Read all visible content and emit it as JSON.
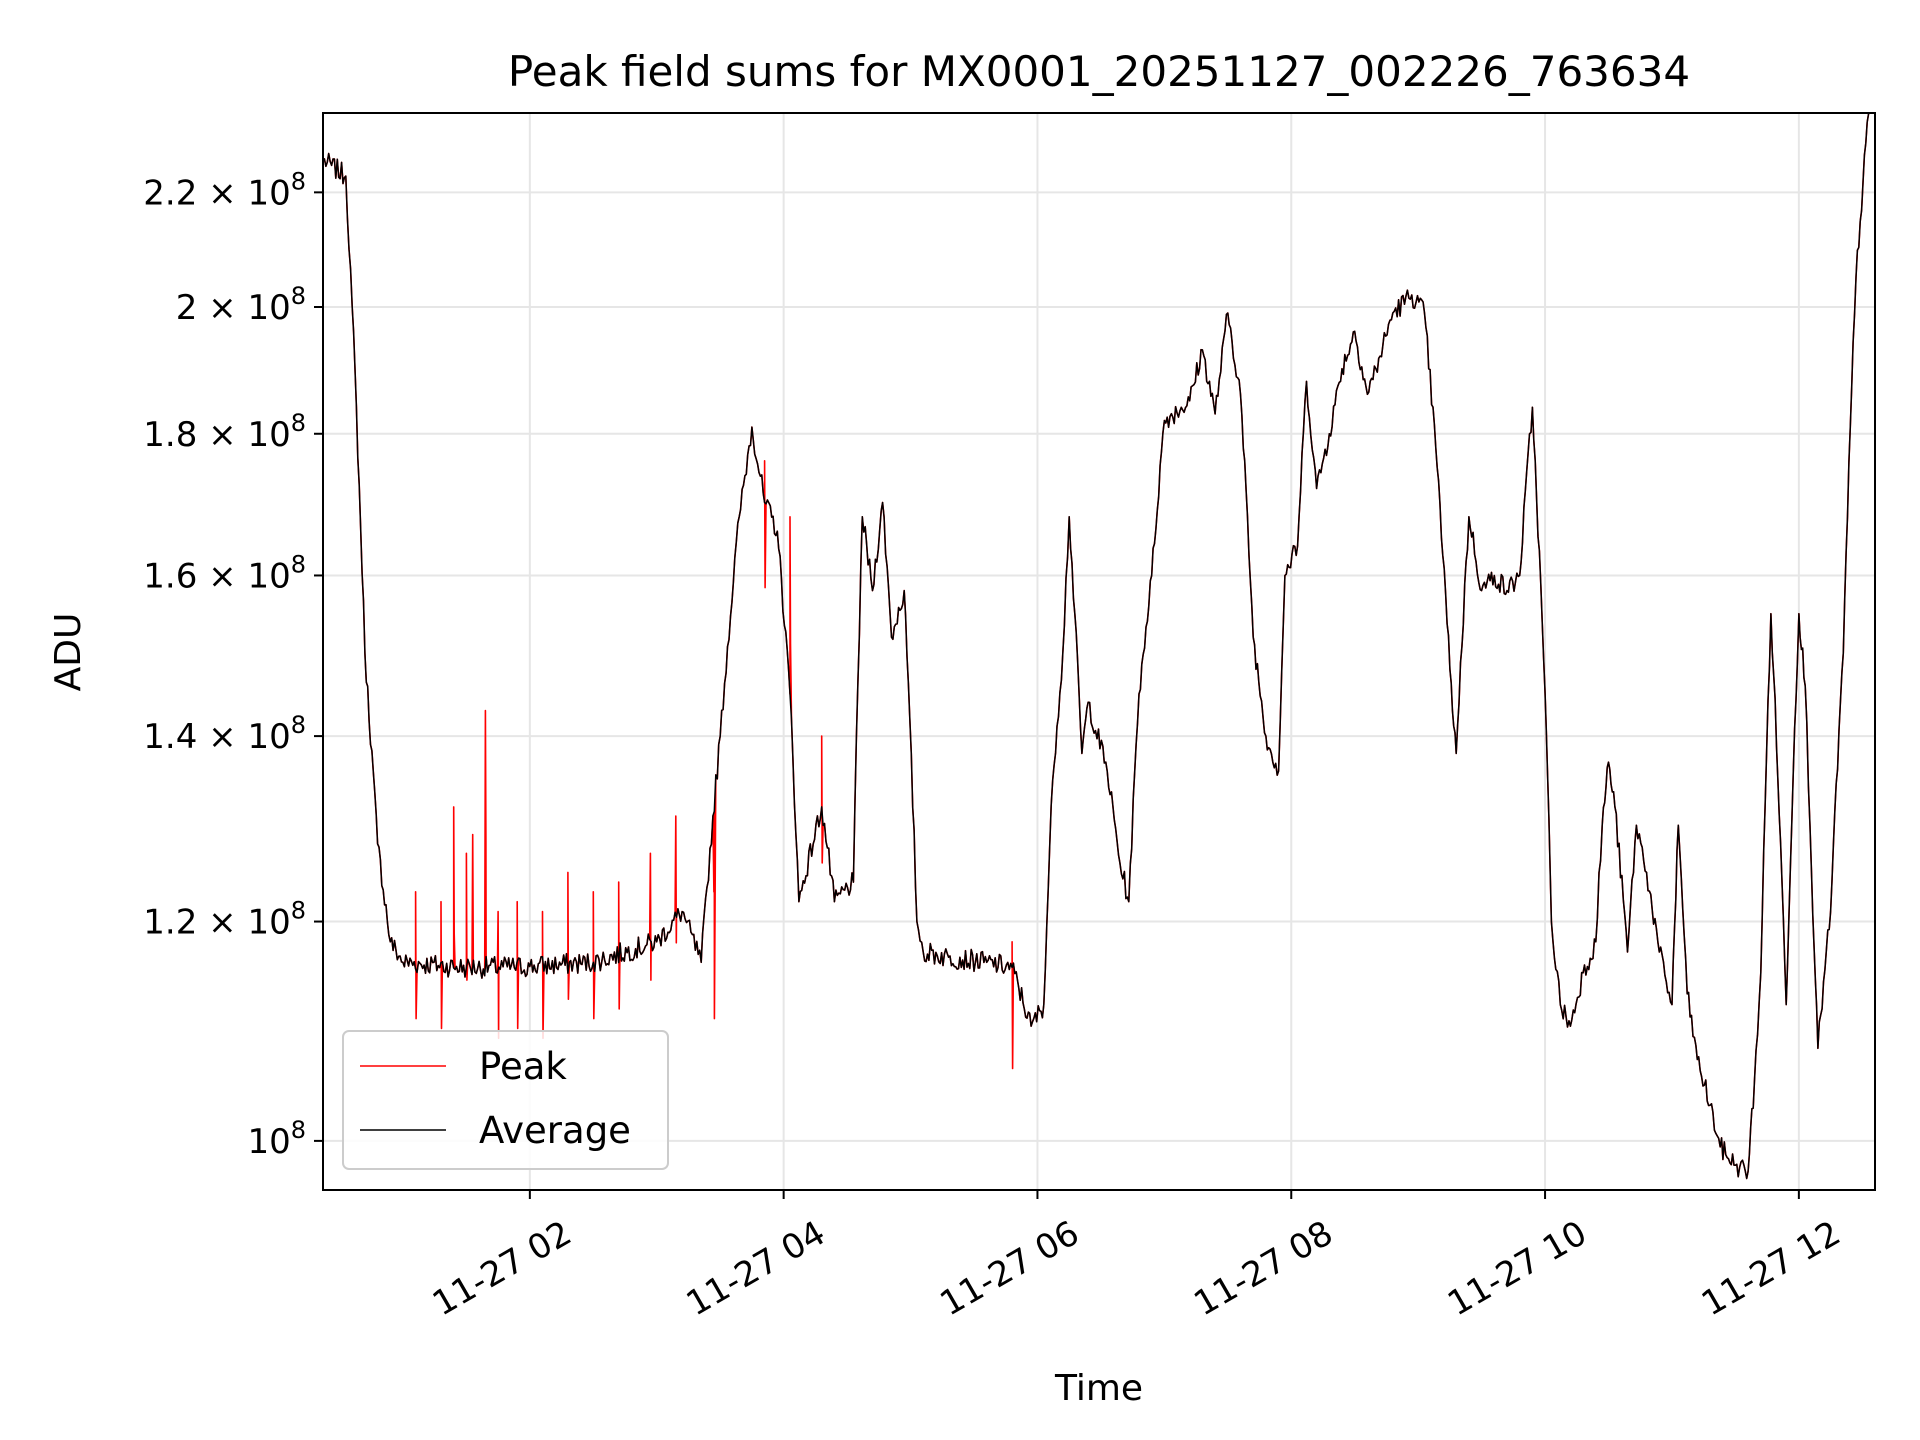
{
  "chart_data": {
    "type": "line",
    "title": "Peak field sums for MX0001_20251127_002226_763634",
    "xlabel": "Time",
    "ylabel": "ADU",
    "yscale": "log",
    "grid": true,
    "legend_position": "lower-left",
    "x_range_hours": [
      0.37,
      12.6
    ],
    "y_range": [
      96000000,
      235000000
    ],
    "x_ticks": [
      {
        "hour": 2,
        "label": "11-27 02"
      },
      {
        "hour": 4,
        "label": "11-27 04"
      },
      {
        "hour": 6,
        "label": "11-27 06"
      },
      {
        "hour": 8,
        "label": "11-27 08"
      },
      {
        "hour": 10,
        "label": "11-27 10"
      },
      {
        "hour": 12,
        "label": "11-27 12"
      }
    ],
    "y_ticks": [
      {
        "value": 100000000,
        "mantissa": "",
        "exp": "8"
      },
      {
        "value": 120000000,
        "mantissa": "1.2",
        "exp": "8"
      },
      {
        "value": 140000000,
        "mantissa": "1.4",
        "exp": "8"
      },
      {
        "value": 160000000,
        "mantissa": "1.6",
        "exp": "8"
      },
      {
        "value": 180000000,
        "mantissa": "1.8",
        "exp": "8"
      },
      {
        "value": 200000000,
        "mantissa": "2",
        "exp": "8"
      },
      {
        "value": 220000000,
        "mantissa": "2.2",
        "exp": "8"
      }
    ],
    "series": [
      {
        "name": "Peak",
        "color": "#ff0000",
        "points": [
          [
            0.37,
            226
          ],
          [
            0.55,
            223
          ],
          [
            0.6,
            200
          ],
          [
            0.7,
            150
          ],
          [
            0.8,
            128
          ],
          [
            0.9,
            118
          ],
          [
            1.0,
            116
          ],
          [
            1.5,
            115.5
          ],
          [
            2.0,
            115.6
          ],
          [
            2.5,
            116
          ],
          [
            3.0,
            118
          ],
          [
            3.2,
            121
          ],
          [
            3.35,
            116
          ],
          [
            3.5,
            140
          ],
          [
            3.65,
            168
          ],
          [
            3.75,
            181
          ],
          [
            3.85,
            170
          ],
          [
            3.95,
            166
          ],
          [
            4.05,
            145
          ],
          [
            4.12,
            122
          ],
          [
            4.3,
            132
          ],
          [
            4.4,
            122
          ],
          [
            4.55,
            124
          ],
          [
            4.62,
            168
          ],
          [
            4.7,
            158
          ],
          [
            4.78,
            170
          ],
          [
            4.85,
            152
          ],
          [
            4.95,
            158
          ],
          [
            5.05,
            120
          ],
          [
            5.1,
            117
          ],
          [
            5.3,
            116.5
          ],
          [
            5.6,
            116
          ],
          [
            5.8,
            115.5
          ],
          [
            5.95,
            110
          ],
          [
            6.05,
            112
          ],
          [
            6.12,
            135
          ],
          [
            6.2,
            150
          ],
          [
            6.25,
            168
          ],
          [
            6.35,
            138
          ],
          [
            6.4,
            144
          ],
          [
            6.55,
            136
          ],
          [
            6.65,
            126
          ],
          [
            6.72,
            122
          ],
          [
            6.8,
            145
          ],
          [
            6.9,
            160
          ],
          [
            7.0,
            182
          ],
          [
            7.2,
            185
          ],
          [
            7.3,
            193
          ],
          [
            7.4,
            183
          ],
          [
            7.5,
            199
          ],
          [
            7.6,
            186
          ],
          [
            7.7,
            152
          ],
          [
            7.8,
            140
          ],
          [
            7.9,
            136
          ],
          [
            7.95,
            160
          ],
          [
            8.05,
            164
          ],
          [
            8.12,
            188
          ],
          [
            8.2,
            172
          ],
          [
            8.3,
            180
          ],
          [
            8.4,
            190
          ],
          [
            8.5,
            196
          ],
          [
            8.6,
            186
          ],
          [
            8.7,
            192
          ],
          [
            8.8,
            199
          ],
          [
            8.95,
            202
          ],
          [
            9.05,
            199
          ],
          [
            9.15,
            175
          ],
          [
            9.25,
            148
          ],
          [
            9.3,
            138
          ],
          [
            9.4,
            168
          ],
          [
            9.5,
            158
          ],
          [
            9.6,
            160
          ],
          [
            9.7,
            158
          ],
          [
            9.8,
            160
          ],
          [
            9.9,
            184
          ],
          [
            10.0,
            145
          ],
          [
            10.05,
            120
          ],
          [
            10.12,
            112
          ],
          [
            10.2,
            110
          ],
          [
            10.3,
            115
          ],
          [
            10.4,
            118
          ],
          [
            10.45,
            130
          ],
          [
            10.5,
            137
          ],
          [
            10.55,
            132
          ],
          [
            10.65,
            117
          ],
          [
            10.72,
            130
          ],
          [
            10.8,
            125
          ],
          [
            10.9,
            117
          ],
          [
            11.0,
            112
          ],
          [
            11.05,
            130
          ],
          [
            11.12,
            113
          ],
          [
            11.2,
            107
          ],
          [
            11.3,
            103
          ],
          [
            11.38,
            99.5
          ],
          [
            11.5,
            98
          ],
          [
            11.6,
            97.5
          ],
          [
            11.65,
            105
          ],
          [
            11.7,
            115
          ],
          [
            11.78,
            155
          ],
          [
            11.9,
            112
          ],
          [
            12.0,
            155
          ],
          [
            12.05,
            146
          ],
          [
            12.1,
            125
          ],
          [
            12.15,
            108
          ],
          [
            12.25,
            121
          ],
          [
            12.35,
            150
          ],
          [
            12.45,
            205
          ],
          [
            12.55,
            235
          ]
        ],
        "spikes": [
          [
            1.1,
            123
          ],
          [
            1.3,
            122
          ],
          [
            1.4,
            132
          ],
          [
            1.5,
            127
          ],
          [
            1.55,
            129
          ],
          [
            1.65,
            143
          ],
          [
            1.75,
            121
          ],
          [
            1.9,
            122
          ],
          [
            2.1,
            121
          ],
          [
            2.3,
            125
          ],
          [
            2.5,
            123
          ],
          [
            2.7,
            124
          ],
          [
            2.95,
            127
          ],
          [
            3.15,
            131
          ],
          [
            3.45,
            123
          ],
          [
            3.85,
            176
          ],
          [
            4.05,
            168
          ],
          [
            4.3,
            140
          ],
          [
            5.8,
            118
          ]
        ]
      },
      {
        "name": "Average",
        "color": "#000000",
        "points": [
          [
            0.37,
            226
          ],
          [
            0.55,
            223
          ],
          [
            0.6,
            200
          ],
          [
            0.7,
            150
          ],
          [
            0.8,
            128
          ],
          [
            0.9,
            118
          ],
          [
            1.0,
            116
          ],
          [
            1.5,
            115.5
          ],
          [
            2.0,
            115.6
          ],
          [
            2.5,
            116
          ],
          [
            3.0,
            118
          ],
          [
            3.2,
            121
          ],
          [
            3.35,
            116
          ],
          [
            3.5,
            140
          ],
          [
            3.65,
            168
          ],
          [
            3.75,
            181
          ],
          [
            3.85,
            170
          ],
          [
            3.95,
            166
          ],
          [
            4.05,
            145
          ],
          [
            4.12,
            122
          ],
          [
            4.3,
            132
          ],
          [
            4.4,
            122
          ],
          [
            4.55,
            124
          ],
          [
            4.62,
            168
          ],
          [
            4.7,
            158
          ],
          [
            4.78,
            170
          ],
          [
            4.85,
            152
          ],
          [
            4.95,
            158
          ],
          [
            5.05,
            120
          ],
          [
            5.1,
            117
          ],
          [
            5.3,
            116.5
          ],
          [
            5.6,
            116
          ],
          [
            5.8,
            115.5
          ],
          [
            5.95,
            110
          ],
          [
            6.05,
            112
          ],
          [
            6.12,
            135
          ],
          [
            6.2,
            150
          ],
          [
            6.25,
            168
          ],
          [
            6.35,
            138
          ],
          [
            6.4,
            144
          ],
          [
            6.55,
            136
          ],
          [
            6.65,
            126
          ],
          [
            6.72,
            122
          ],
          [
            6.8,
            145
          ],
          [
            6.9,
            160
          ],
          [
            7.0,
            182
          ],
          [
            7.2,
            185
          ],
          [
            7.3,
            193
          ],
          [
            7.4,
            183
          ],
          [
            7.5,
            199
          ],
          [
            7.6,
            186
          ],
          [
            7.7,
            152
          ],
          [
            7.8,
            140
          ],
          [
            7.9,
            136
          ],
          [
            7.95,
            160
          ],
          [
            8.05,
            164
          ],
          [
            8.12,
            188
          ],
          [
            8.2,
            172
          ],
          [
            8.3,
            180
          ],
          [
            8.4,
            190
          ],
          [
            8.5,
            196
          ],
          [
            8.6,
            186
          ],
          [
            8.7,
            192
          ],
          [
            8.8,
            199
          ],
          [
            8.95,
            202
          ],
          [
            9.05,
            199
          ],
          [
            9.15,
            175
          ],
          [
            9.25,
            148
          ],
          [
            9.3,
            138
          ],
          [
            9.4,
            168
          ],
          [
            9.5,
            158
          ],
          [
            9.6,
            160
          ],
          [
            9.7,
            158
          ],
          [
            9.8,
            160
          ],
          [
            9.9,
            184
          ],
          [
            10.0,
            145
          ],
          [
            10.05,
            120
          ],
          [
            10.12,
            112
          ],
          [
            10.2,
            110
          ],
          [
            10.3,
            115
          ],
          [
            10.4,
            118
          ],
          [
            10.45,
            130
          ],
          [
            10.5,
            137
          ],
          [
            10.55,
            132
          ],
          [
            10.65,
            117
          ],
          [
            10.72,
            130
          ],
          [
            10.8,
            125
          ],
          [
            10.9,
            117
          ],
          [
            11.0,
            112
          ],
          [
            11.05,
            130
          ],
          [
            11.12,
            113
          ],
          [
            11.2,
            107
          ],
          [
            11.3,
            103
          ],
          [
            11.38,
            99.5
          ],
          [
            11.5,
            98
          ],
          [
            11.6,
            97.5
          ],
          [
            11.65,
            105
          ],
          [
            11.7,
            115
          ],
          [
            11.78,
            155
          ],
          [
            11.9,
            112
          ],
          [
            12.0,
            155
          ],
          [
            12.05,
            146
          ],
          [
            12.1,
            125
          ],
          [
            12.15,
            108
          ],
          [
            12.25,
            121
          ],
          [
            12.35,
            150
          ],
          [
            12.45,
            205
          ],
          [
            12.55,
            235
          ]
        ]
      }
    ]
  }
}
